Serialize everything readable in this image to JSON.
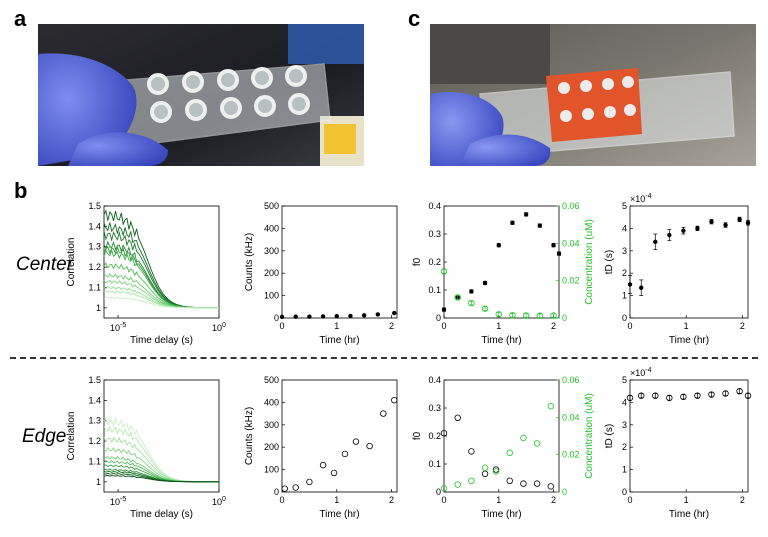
{
  "panels": {
    "a": "a",
    "b": "b",
    "c": "c"
  },
  "rows": {
    "center": "Center",
    "edge": "Edge"
  },
  "colors": {
    "glove": "#4b5bd6",
    "slide": "#cfd6d8",
    "gasket": "#e2542a",
    "fcs_dark": "#0b5d1e",
    "fcs_light": "#9be89b",
    "conc_green": "#22c22a",
    "text": "#000000"
  },
  "chart_data": [
    {
      "id": "center-corr",
      "type": "line",
      "xlabel": "Time delay (s)",
      "ylabel": "Correlation",
      "xscale": "log",
      "xlim": [
        2e-06,
        1
      ],
      "xticks": [
        {
          "v": 1e-05,
          "base": "10",
          "exp": "-5"
        },
        {
          "v": 1,
          "base": "10",
          "exp": "0"
        }
      ],
      "ylim": [
        0.95,
        1.5
      ],
      "yticks": [
        1,
        1.1,
        1.2,
        1.3,
        1.4,
        1.5
      ],
      "curve_amplitudes": [
        0.46,
        0.4,
        0.36,
        0.31,
        0.29,
        0.27,
        0.21,
        0.16,
        0.13,
        0.1,
        0.08,
        0.05
      ],
      "curve_colors": [
        "#0b5d1e",
        "#146b24",
        "#1a7a2a",
        "#218a31",
        "#2a9a38",
        "#3aab46",
        "#4fbb55",
        "#66c96a",
        "#7dd57f",
        "#94df94",
        "#aae8a8",
        "#c2f0bf"
      ]
    },
    {
      "id": "center-counts",
      "type": "scatter",
      "xlabel": "Time (hr)",
      "ylabel": "Counts (kHz)",
      "xlim": [
        0,
        2.1
      ],
      "xticks": [
        0,
        1,
        2
      ],
      "ylim": [
        0,
        500
      ],
      "yticks": [
        0,
        100,
        200,
        300,
        400,
        500
      ],
      "series": [
        {
          "marker": "filled",
          "x": [
            0,
            0.25,
            0.5,
            0.75,
            1.0,
            1.25,
            1.5,
            1.75,
            2.05
          ],
          "y": [
            5,
            6,
            6,
            7,
            8,
            9,
            12,
            16,
            22
          ]
        }
      ]
    },
    {
      "id": "center-f0",
      "type": "scatter",
      "xlabel": "Time (hr)",
      "ylabel": "f0",
      "y2label": "Concentration (uM)",
      "xlim": [
        0,
        2.1
      ],
      "xticks": [
        0,
        1,
        2
      ],
      "ylim": [
        0,
        0.4
      ],
      "yticks": [
        0,
        0.1,
        0.2,
        0.3,
        0.4
      ],
      "y2lim": [
        0,
        0.06
      ],
      "y2ticks": [
        0,
        0.02,
        0.04,
        0.06
      ],
      "series": [
        {
          "axis": "left",
          "marker": "filled-errorbar",
          "x": [
            0,
            0.25,
            0.5,
            0.75,
            1.0,
            1.25,
            1.5,
            1.75,
            2.0,
            2.1
          ],
          "y": [
            0.03,
            0.075,
            0.095,
            0.125,
            0.26,
            0.34,
            0.37,
            0.33,
            0.26,
            0.23
          ]
        },
        {
          "axis": "right",
          "marker": "green-errorbar",
          "x": [
            0,
            0.25,
            0.5,
            0.75,
            1.0,
            1.25,
            1.5,
            1.75,
            2.0
          ],
          "y": [
            0.025,
            0.011,
            0.008,
            0.005,
            0.002,
            0.0015,
            0.0013,
            0.0012,
            0.0013
          ]
        }
      ]
    },
    {
      "id": "center-td",
      "type": "scatter",
      "xlabel": "Time (hr)",
      "ylabel": "tD (s)",
      "multiplier": {
        "base": "×10",
        "exp": "-4"
      },
      "xlim": [
        0,
        2.1
      ],
      "xticks": [
        0,
        1,
        2
      ],
      "ylim": [
        0,
        5
      ],
      "yticks": [
        0,
        1,
        2,
        3,
        4,
        5
      ],
      "series": [
        {
          "marker": "filled-errorbar",
          "x": [
            0,
            0.2,
            0.45,
            0.7,
            0.95,
            1.2,
            1.45,
            1.7,
            1.95,
            2.1
          ],
          "y": [
            1.5,
            1.35,
            3.4,
            3.7,
            3.9,
            4.0,
            4.3,
            4.15,
            4.4,
            4.25
          ],
          "err": [
            0.4,
            0.35,
            0.35,
            0.25,
            0.15,
            0.1,
            0.1,
            0.1,
            0.1,
            0.1
          ]
        }
      ]
    },
    {
      "id": "edge-corr",
      "type": "line",
      "xlabel": "Time delay (s)",
      "ylabel": "Correlation",
      "xscale": "log",
      "xlim": [
        2e-06,
        1
      ],
      "xticks": [
        {
          "v": 1e-05,
          "base": "10",
          "exp": "-5"
        },
        {
          "v": 1,
          "base": "10",
          "exp": "0"
        }
      ],
      "ylim": [
        0.95,
        1.5
      ],
      "yticks": [
        1,
        1.1,
        1.2,
        1.3,
        1.4,
        1.5
      ],
      "curve_amplitudes": [
        0.3,
        0.26,
        0.21,
        0.16,
        0.12,
        0.1,
        0.08,
        0.06,
        0.05,
        0.04,
        0.03
      ],
      "curve_colors": [
        "#c8f1c4",
        "#b3eaaf",
        "#9fe29c",
        "#86d888",
        "#6dcb72",
        "#52bc5a",
        "#3aa744",
        "#268f33",
        "#177726",
        "#0f621d",
        "#074d15"
      ]
    },
    {
      "id": "edge-counts",
      "type": "scatter",
      "xlabel": "Time (hr)",
      "ylabel": "Counts (kHz)",
      "xlim": [
        0,
        2.1
      ],
      "xticks": [
        0,
        1,
        2
      ],
      "ylim": [
        0,
        500
      ],
      "yticks": [
        0,
        100,
        200,
        300,
        400,
        500
      ],
      "series": [
        {
          "marker": "open",
          "x": [
            0.05,
            0.25,
            0.5,
            0.75,
            0.95,
            1.15,
            1.35,
            1.6,
            1.85,
            2.05
          ],
          "y": [
            15,
            20,
            45,
            120,
            85,
            170,
            225,
            205,
            350,
            410
          ]
        }
      ]
    },
    {
      "id": "edge-f0",
      "type": "scatter",
      "xlabel": "Time (hr)",
      "ylabel": "f0",
      "y2label": "Concentration (uM)",
      "xlim": [
        0,
        2.1
      ],
      "xticks": [
        0,
        1,
        2
      ],
      "ylim": [
        0,
        0.4
      ],
      "yticks": [
        0,
        0.1,
        0.2,
        0.3,
        0.4
      ],
      "y2lim": [
        0,
        0.06
      ],
      "y2ticks": [
        0,
        0.02,
        0.04,
        0.06
      ],
      "series": [
        {
          "axis": "left",
          "marker": "open",
          "x": [
            0.0,
            0.25,
            0.5,
            0.75,
            0.95,
            1.2,
            1.45,
            1.7,
            1.95
          ],
          "y": [
            0.21,
            0.265,
            0.145,
            0.065,
            0.08,
            0.04,
            0.03,
            0.03,
            0.02
          ]
        },
        {
          "axis": "right",
          "marker": "green-open",
          "x": [
            0.0,
            0.25,
            0.5,
            0.75,
            0.95,
            1.2,
            1.45,
            1.7,
            1.95
          ],
          "y": [
            0.002,
            0.004,
            0.006,
            0.013,
            0.011,
            0.021,
            0.029,
            0.026,
            0.046
          ]
        }
      ]
    },
    {
      "id": "edge-td",
      "type": "scatter",
      "xlabel": "Time (hr)",
      "ylabel": "tD (s)",
      "multiplier": {
        "base": "×10",
        "exp": "-4"
      },
      "xlim": [
        0,
        2.1
      ],
      "xticks": [
        0,
        1,
        2
      ],
      "ylim": [
        0,
        5
      ],
      "yticks": [
        0,
        1,
        2,
        3,
        4,
        5
      ],
      "series": [
        {
          "marker": "open-errorbar",
          "x": [
            0,
            0.2,
            0.45,
            0.7,
            0.95,
            1.2,
            1.45,
            1.7,
            1.95,
            2.1
          ],
          "y": [
            4.2,
            4.3,
            4.3,
            4.2,
            4.25,
            4.3,
            4.35,
            4.4,
            4.5,
            4.3
          ],
          "err": [
            0.1,
            0.1,
            0.1,
            0.1,
            0.1,
            0.1,
            0.1,
            0.1,
            0.1,
            0.1
          ]
        }
      ]
    }
  ]
}
